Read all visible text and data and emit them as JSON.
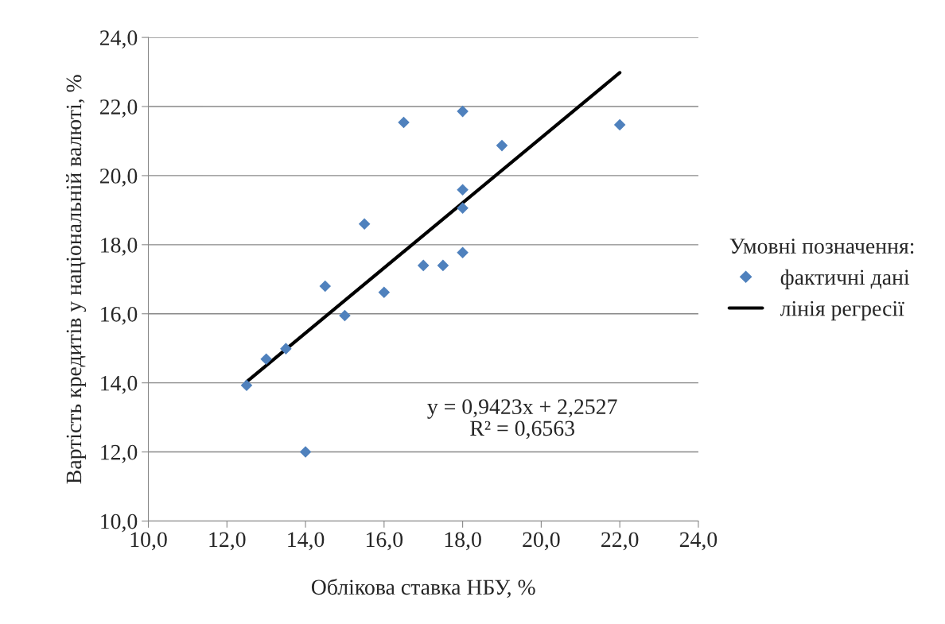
{
  "chart_data": {
    "type": "scatter",
    "xlabel": "Облікова ставка НБУ, %",
    "ylabel": "Вартість кредитів у національній валюті, %",
    "legend_title": "Умовні позначення:",
    "series": [
      {
        "name": "фактичні дані",
        "color": "#4f81bd",
        "marker": "diamond",
        "x": [
          12.5,
          13.0,
          13.5,
          14.0,
          14.5,
          15.0,
          15.5,
          16.0,
          16.5,
          17.0,
          17.5,
          18.0,
          18.0,
          18.0,
          18.0,
          19.0,
          22.0
        ],
        "values": [
          13.93,
          14.69,
          14.99,
          12.0,
          16.8,
          15.95,
          18.6,
          16.62,
          21.54,
          17.4,
          17.4,
          21.86,
          19.59,
          19.06,
          17.77,
          20.87,
          21.47
        ]
      },
      {
        "name": "лінія регресії",
        "type": "line",
        "color": "#000000",
        "marker": "none",
        "line_style": "solid",
        "x": [
          12.5,
          22.0
        ],
        "values": [
          14.03,
          22.98
        ]
      }
    ],
    "annotations": [
      "y = 0,9423x + 2,2527\nR² = 0,6563"
    ],
    "xlim": [
      10,
      24
    ],
    "ylim": [
      10,
      24
    ],
    "xticks": [
      {
        "value": 10,
        "label": "10,0"
      },
      {
        "value": 12,
        "label": "12,0"
      },
      {
        "value": 14,
        "label": "14,0"
      },
      {
        "value": 16,
        "label": "16,0"
      },
      {
        "value": 18,
        "label": "18,0"
      },
      {
        "value": 20,
        "label": "20,0"
      },
      {
        "value": 22,
        "label": "22,0"
      },
      {
        "value": 24,
        "label": "24,0"
      }
    ],
    "yticks": [
      {
        "value": 10,
        "label": "10,0"
      },
      {
        "value": 12,
        "label": "12,0"
      },
      {
        "value": 14,
        "label": "14,0"
      },
      {
        "value": 16,
        "label": "16,0"
      },
      {
        "value": 18,
        "label": "18,0"
      },
      {
        "value": 20,
        "label": "20,0"
      },
      {
        "value": 22,
        "label": "22,0"
      },
      {
        "value": 24,
        "label": "24,0"
      }
    ],
    "grid": "y",
    "legend": "right"
  }
}
